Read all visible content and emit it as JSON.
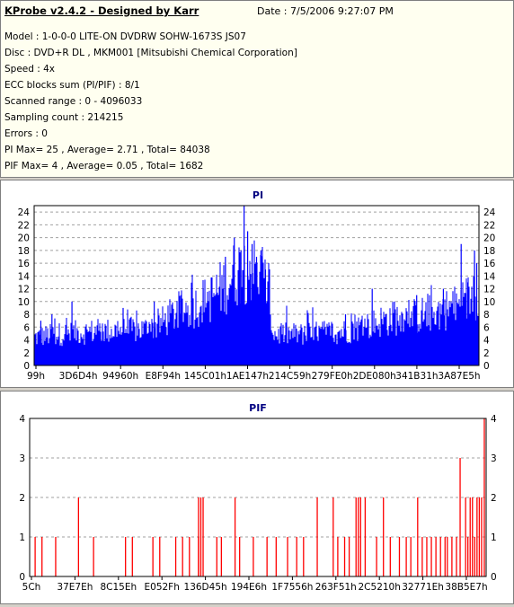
{
  "header": {
    "title": "KProbe v2.4.2 - Designed by Karr",
    "date": "Date : 7/5/2006 9:27:07 PM"
  },
  "info": {
    "model": "Model : 1-0-0-0 LITE-ON DVDRW SOHW-1673S JS07",
    "disc": "Disc : DVD+R DL , MKM001 [Mitsubishi Chemical Corporation]",
    "speed": "Speed : 4x",
    "ecc": "ECC blocks sum (PI/PIF) : 8/1",
    "range": "Scanned range : 0 - 4096033",
    "sampling": "Sampling count : 214215",
    "errors": "Errors : 0",
    "pi_summary": "PI Max= 25 , Average= 2.71 , Total= 84038",
    "pif_summary": "PIF Max= 4 , Average= 0.05 , Total= 1682"
  },
  "colors": {
    "pi_fill": "#0000ff",
    "pif_bar": "#ff0000",
    "title_text": "#000080"
  },
  "chart_data": [
    {
      "type": "bar",
      "title": "PI",
      "ylim": [
        0,
        25
      ],
      "y_ticks": [
        0,
        2,
        4,
        6,
        8,
        10,
        12,
        14,
        16,
        18,
        20,
        22,
        24
      ],
      "x_tick_labels": [
        "99h",
        "3D6D4h",
        "94960h",
        "E8F94h",
        "145C01h",
        "1AE147h",
        "214C59h",
        "279FE0h",
        "2DE080h",
        "341B31h",
        "3A87E5h"
      ],
      "grid": true,
      "max": 25,
      "average": 2.71,
      "total": 84038,
      "profile": [
        [
          0,
          4.5
        ],
        [
          0.05,
          5
        ],
        [
          0.1,
          5.3
        ],
        [
          0.15,
          5.5
        ],
        [
          0.2,
          5.6
        ],
        [
          0.25,
          5.8
        ],
        [
          0.28,
          6.5
        ],
        [
          0.32,
          8.5
        ],
        [
          0.36,
          9.5
        ],
        [
          0.4,
          11
        ],
        [
          0.43,
          13
        ],
        [
          0.455,
          15
        ],
        [
          0.48,
          16
        ],
        [
          0.5,
          15
        ],
        [
          0.52,
          13
        ],
        [
          0.53,
          11
        ],
        [
          0.535,
          6
        ],
        [
          0.54,
          5
        ],
        [
          0.6,
          5
        ],
        [
          0.7,
          5.5
        ],
        [
          0.75,
          6.5
        ],
        [
          0.8,
          7.5
        ],
        [
          0.85,
          7.8
        ],
        [
          0.9,
          8.5
        ],
        [
          0.95,
          9.5
        ],
        [
          1.0,
          12
        ]
      ],
      "spikes": [
        [
          0.015,
          7
        ],
        [
          0.04,
          8
        ],
        [
          0.085,
          10
        ],
        [
          0.2,
          9
        ],
        [
          0.27,
          10
        ],
        [
          0.33,
          11
        ],
        [
          0.38,
          12
        ],
        [
          0.43,
          17
        ],
        [
          0.45,
          20
        ],
        [
          0.465,
          18
        ],
        [
          0.472,
          25
        ],
        [
          0.48,
          21
        ],
        [
          0.49,
          19
        ],
        [
          0.5,
          17
        ],
        [
          0.51,
          18
        ],
        [
          0.52,
          15
        ],
        [
          0.7,
          8
        ],
        [
          0.76,
          12
        ],
        [
          0.81,
          10
        ],
        [
          0.86,
          11
        ],
        [
          0.92,
          12
        ],
        [
          0.96,
          19
        ],
        [
          0.975,
          13
        ],
        [
          0.99,
          18
        ],
        [
          0.995,
          16
        ]
      ]
    },
    {
      "type": "bar",
      "title": "PIF",
      "ylim": [
        0,
        4
      ],
      "y_ticks": [
        0,
        1,
        2,
        3,
        4
      ],
      "x_tick_labels": [
        "5Ch",
        "37E7Eh",
        "8C15Eh",
        "E052Fh",
        "136D45h",
        "194E6h",
        "1F7556h",
        "263F51h",
        "2C5210h",
        "32771Eh",
        "38B5E7h"
      ],
      "grid": true,
      "max": 4,
      "average": 0.05,
      "total": 1682,
      "bars": [
        [
          0.012,
          1
        ],
        [
          0.027,
          1
        ],
        [
          0.057,
          1
        ],
        [
          0.107,
          2
        ],
        [
          0.14,
          1
        ],
        [
          0.21,
          1
        ],
        [
          0.225,
          1
        ],
        [
          0.27,
          1
        ],
        [
          0.285,
          1
        ],
        [
          0.32,
          1
        ],
        [
          0.335,
          1
        ],
        [
          0.35,
          1
        ],
        [
          0.37,
          1
        ],
        [
          0.37,
          2
        ],
        [
          0.375,
          2
        ],
        [
          0.38,
          2
        ],
        [
          0.41,
          1
        ],
        [
          0.42,
          1
        ],
        [
          0.45,
          2
        ],
        [
          0.46,
          1
        ],
        [
          0.49,
          1
        ],
        [
          0.52,
          1
        ],
        [
          0.54,
          1
        ],
        [
          0.565,
          1
        ],
        [
          0.585,
          1
        ],
        [
          0.6,
          1
        ],
        [
          0.63,
          2
        ],
        [
          0.665,
          2
        ],
        [
          0.675,
          1
        ],
        [
          0.69,
          1
        ],
        [
          0.7,
          1
        ],
        [
          0.715,
          2
        ],
        [
          0.72,
          2
        ],
        [
          0.725,
          2
        ],
        [
          0.735,
          2
        ],
        [
          0.76,
          1
        ],
        [
          0.775,
          2
        ],
        [
          0.79,
          1
        ],
        [
          0.81,
          1
        ],
        [
          0.825,
          1
        ],
        [
          0.835,
          1
        ],
        [
          0.85,
          2
        ],
        [
          0.86,
          1
        ],
        [
          0.87,
          1
        ],
        [
          0.88,
          1
        ],
        [
          0.89,
          1
        ],
        [
          0.9,
          1
        ],
        [
          0.91,
          1
        ],
        [
          0.915,
          1
        ],
        [
          0.925,
          1
        ],
        [
          0.935,
          1
        ],
        [
          0.943,
          3
        ],
        [
          0.955,
          2
        ],
        [
          0.96,
          1
        ],
        [
          0.965,
          2
        ],
        [
          0.97,
          2
        ],
        [
          0.975,
          1
        ],
        [
          0.98,
          2
        ],
        [
          0.985,
          2
        ],
        [
          0.99,
          2
        ],
        [
          0.996,
          4
        ]
      ]
    }
  ]
}
